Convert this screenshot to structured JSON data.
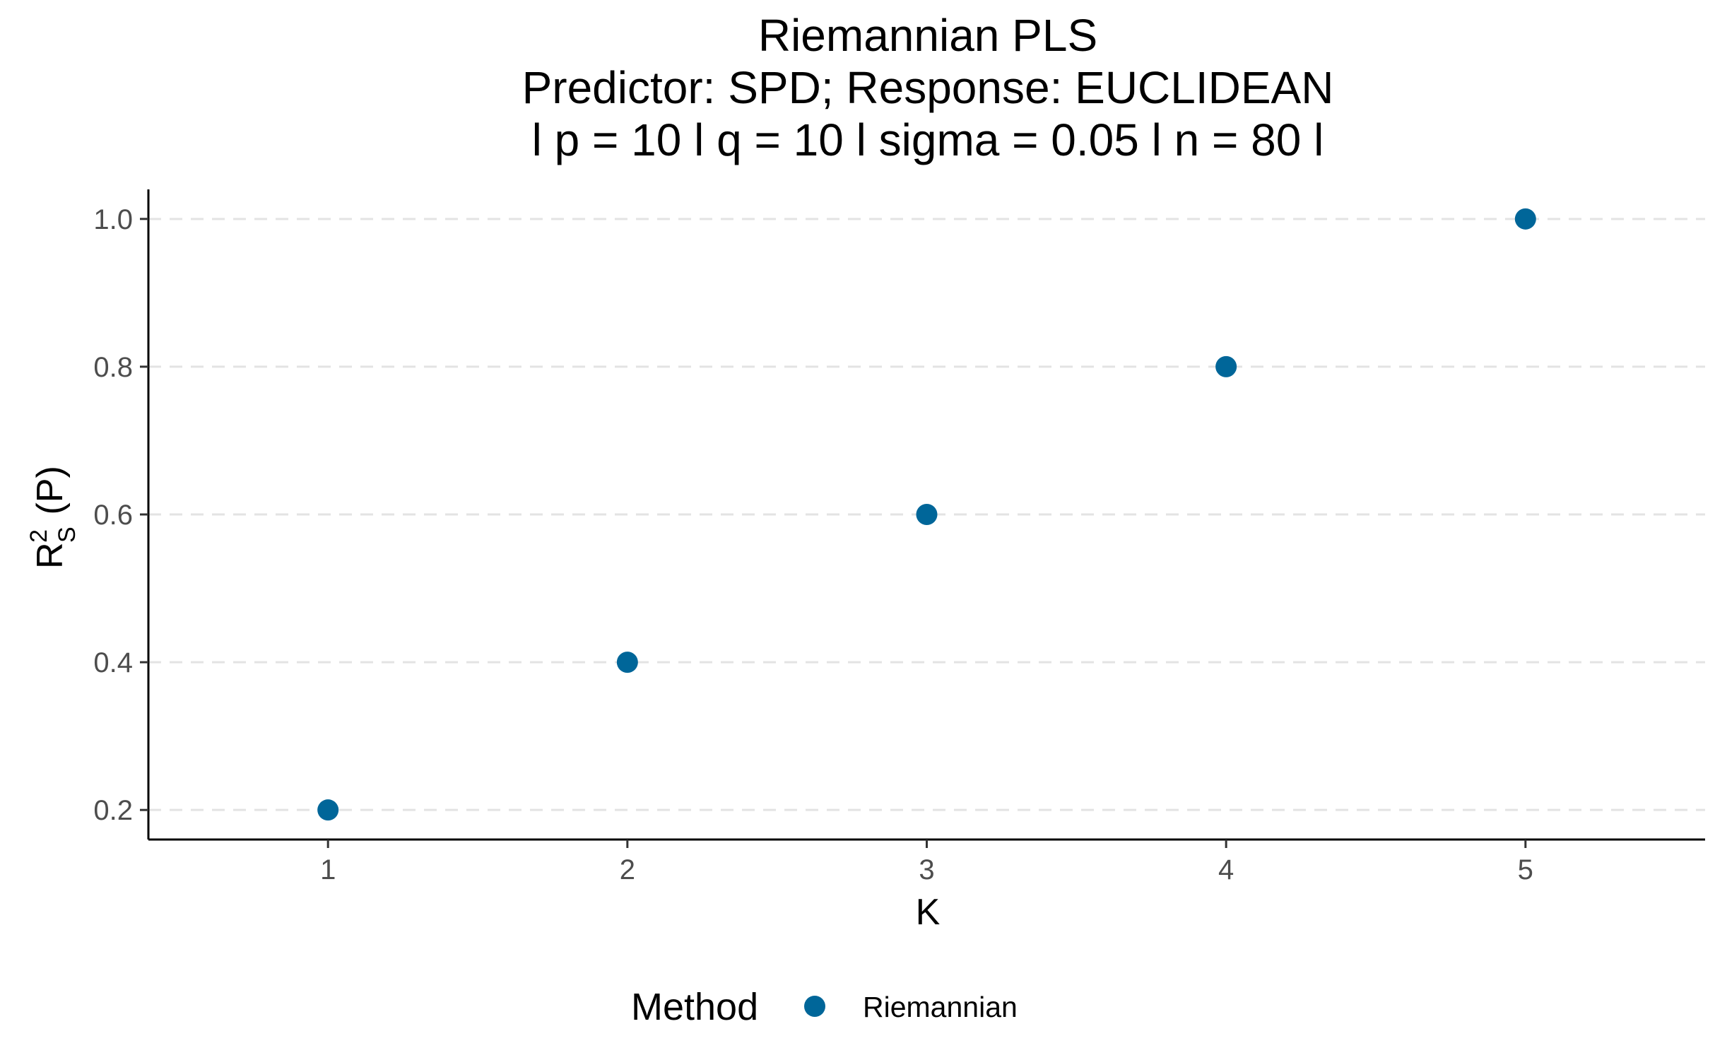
{
  "chart_data": {
    "type": "scatter",
    "title": [
      "Riemannian PLS",
      "Predictor: SPD; Response: EUCLIDEAN",
      "l p = 10 l q = 10 l sigma = 0.05 l n = 80 l"
    ],
    "xlabel": "K",
    "ylabel": {
      "base": "R",
      "sup": "2",
      "sub": "S",
      "rest": " (P)"
    },
    "x": [
      1,
      2,
      3,
      4,
      5
    ],
    "x_tick_labels": [
      "1",
      "2",
      "3",
      "4",
      "5"
    ],
    "xlim": [
      0.4,
      5.6
    ],
    "y_ticks": [
      0.2,
      0.4,
      0.6,
      0.8,
      1.0
    ],
    "y_tick_labels": [
      "0.2",
      "0.4",
      "0.6",
      "0.8",
      "1.0"
    ],
    "ylim": [
      0.16,
      1.04
    ],
    "grid": "horizontal dashed",
    "series": [
      {
        "name": "Riemannian",
        "color": "#006699",
        "values": [
          0.2,
          0.4,
          0.6,
          0.8,
          1.0
        ]
      }
    ],
    "legend": {
      "title": "Method",
      "position": "bottom"
    }
  }
}
